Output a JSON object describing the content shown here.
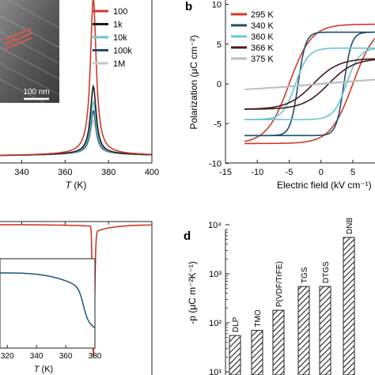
{
  "panels": {
    "b": "b",
    "d": "d"
  },
  "colors": {
    "axis": "#222222",
    "red": "#d0392b",
    "black": "#1b1b1b",
    "cyan": "#6cc3d5",
    "navy": "#1d4f6e",
    "gray": "#c9c9bf",
    "brown": "#4a1a1a",
    "grayLoop": "#bdbdbd",
    "blue": "#1f5577"
  },
  "chart_data": [
    {
      "id": "a",
      "type": "line",
      "xlabel_var": "T",
      "xlabel_unit": " (K)",
      "xlim": [
        330,
        400
      ],
      "xticks": [
        340,
        360,
        380,
        400
      ],
      "tick_labels": [
        "340",
        "360",
        "380",
        "400"
      ],
      "inset": {
        "scale_bar_label": "100 nm"
      },
      "series": [
        {
          "name": "100",
          "color": "#d0392b",
          "peak": 1.0
        },
        {
          "name": "1k",
          "color": "#1b1b1b",
          "peak": 0.43
        },
        {
          "name": "10k",
          "color": "#6cc3d5",
          "peak": 0.33
        },
        {
          "name": "100k",
          "color": "#1d4f6e",
          "peak": 0.27
        },
        {
          "name": "1M",
          "color": "#c9c9bf",
          "peak": 0.21
        }
      ]
    },
    {
      "id": "b",
      "type": "line",
      "xlabel": "Electric field (kV cm⁻¹)",
      "ylabel": "Polarization (μC cm⁻²)",
      "xlim": [
        -15,
        8
      ],
      "ylim": [
        -10,
        10
      ],
      "xticks": [
        -15,
        -10,
        -5,
        0,
        5
      ],
      "xtick_labels": [
        "-15",
        "-10",
        "-5",
        "0",
        "5"
      ],
      "yticks": [
        -10,
        -5,
        0,
        5,
        10
      ],
      "ytick_labels": [
        "-10",
        "-5",
        "0",
        "5",
        "10"
      ],
      "series": [
        {
          "name": "295 K",
          "color": "#d0392b",
          "Ps": 7.5,
          "Ec": 5.0,
          "w": 3.5
        },
        {
          "name": "340 K",
          "color": "#1d4f6e",
          "Ps": 6.5,
          "Ec": 3.6,
          "w": 1.2
        },
        {
          "name": "360 K",
          "color": "#6cc3d5",
          "Ps": 4.5,
          "Ec": 4.0,
          "w": 2.0
        },
        {
          "name": "366 K",
          "color": "#4a1a1a",
          "Ps": 3.2,
          "Ec": 1.2,
          "w": 4.0
        },
        {
          "name": "375 K",
          "color": "#bdbdbd",
          "Ps": 0.4,
          "Ec": 1.0,
          "w": 10
        }
      ]
    },
    {
      "id": "c",
      "type": "line",
      "xlim": [
        330,
        400
      ],
      "dip_x": 373,
      "series": [
        {
          "color": "#d0392b"
        }
      ],
      "inset": {
        "xlabel_var": "T",
        "xlabel_unit": " (K)",
        "xticks": [
          320,
          340,
          360,
          380
        ],
        "tick_labels": [
          "320",
          "340",
          "360",
          "380"
        ],
        "color": "#1f5577"
      }
    },
    {
      "id": "d",
      "type": "bar",
      "scale": "log",
      "ylabel": "-p (μC m⁻²K⁻¹)",
      "ylim": [
        10,
        100000
      ],
      "ytick_labels": [
        "10¹",
        "10²",
        "10³",
        "10⁴"
      ],
      "categories": [
        "DLP",
        "TMO",
        "P(VDF/TrFE)",
        "TGS",
        "DTGS",
        "DNB"
      ],
      "values": [
        55,
        70,
        180,
        550,
        550,
        5500
      ]
    }
  ]
}
